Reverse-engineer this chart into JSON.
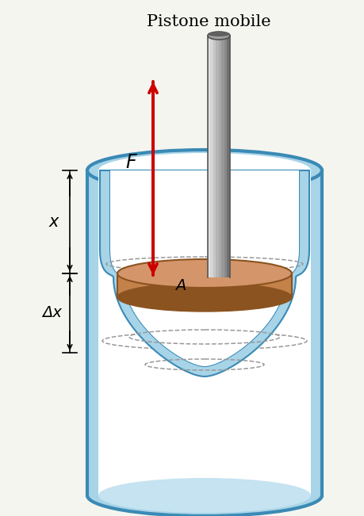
{
  "title": "Pistone mobile",
  "title_fontsize": 15,
  "background_color": "#f5f5f0",
  "cylinder_color": "#a8d4e8",
  "cylinder_color_light": "#c5e3f0",
  "cylinder_border": "#3a8ab5",
  "cylinder_border_lw": 3.0,
  "piston_color": "#c4824a",
  "piston_color_light": "#d4956a",
  "piston_dark": "#8B5320",
  "piston_bottom_dark": "#7a4010",
  "rod_color_light": "#d8d8d8",
  "rod_color_mid": "#b8b8b8",
  "rod_color_dark": "#808080",
  "rod_color_darkest": "#505050",
  "arrow_color": "#cc0000",
  "label_F": "F",
  "label_x": "x",
  "label_dx": "Δx",
  "label_A": "A",
  "dashed_color": "#999999"
}
